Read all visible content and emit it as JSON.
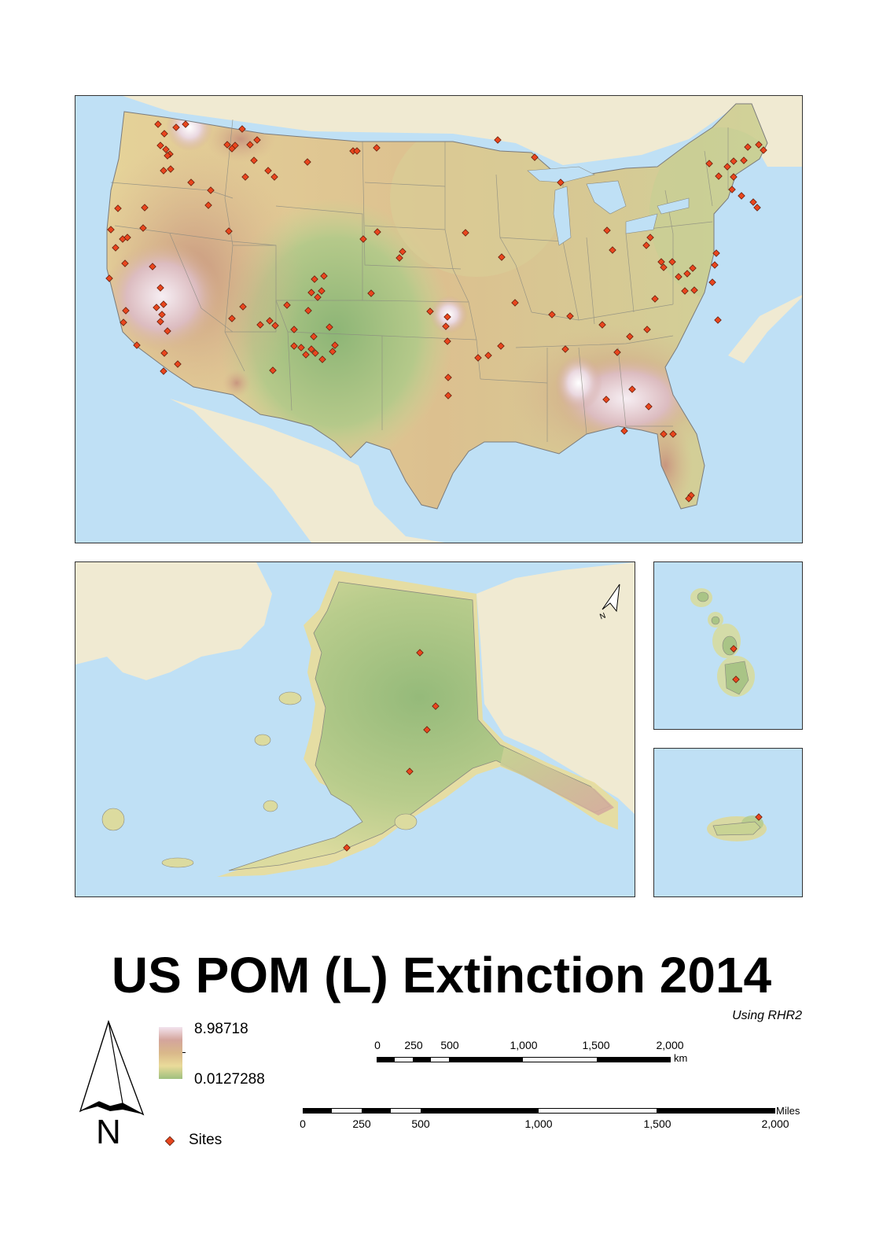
{
  "title": "US POM (L) Extinction 2014",
  "subtitle": "Using RHR2",
  "legend": {
    "max_label": "8.98718",
    "min_label": "0.0127288",
    "sites_label": "Sites",
    "ramp_colors": [
      "#f3e4ef",
      "#d4a59c",
      "#d9b88a",
      "#eadb9a",
      "#9fc07f"
    ],
    "site_color": "#e8461e"
  },
  "north_arrow": {
    "letter": "N"
  },
  "scalebar_km": {
    "unit": "km",
    "ticks": [
      "0",
      "250",
      "500",
      "1,000",
      "1,500",
      "2,000"
    ]
  },
  "scalebar_miles": {
    "unit": "Miles",
    "ticks": [
      "0",
      "250",
      "500",
      "1,000",
      "1,500",
      "2,000"
    ]
  },
  "colors": {
    "ocean": "#bfe0f5",
    "land": "#f0ead2",
    "frame": "#333333"
  }
}
